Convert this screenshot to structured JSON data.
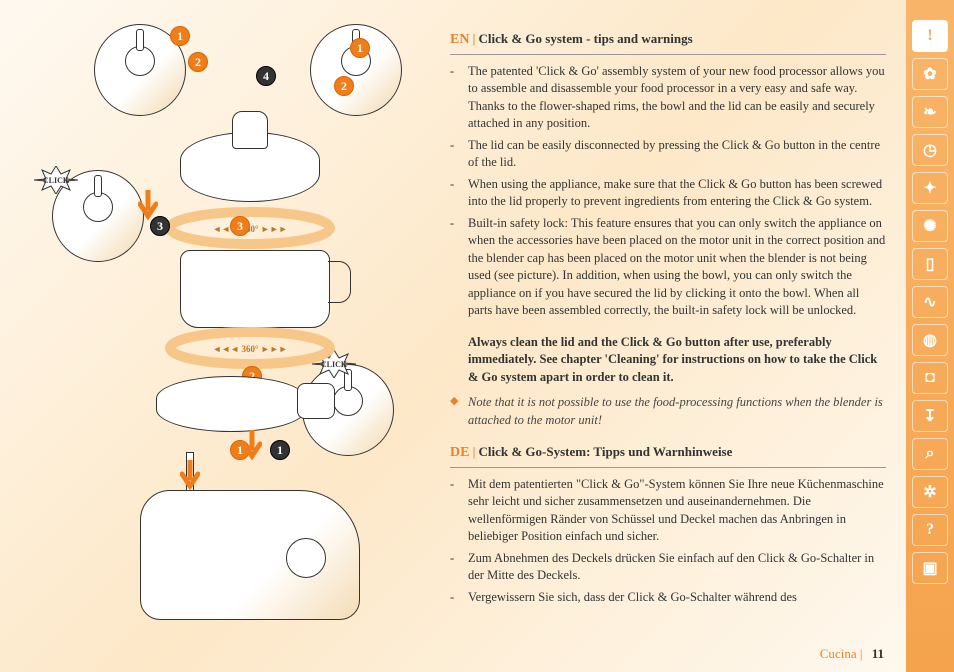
{
  "colors": {
    "accent": "#e8832b",
    "sidebar_bg": "#f5a34d",
    "text": "#333333"
  },
  "diagram": {
    "click_label": "CLICK",
    "ring_label": "360°",
    "steps": [
      "1",
      "2",
      "3",
      "4"
    ],
    "arrow_color": "#f29b3e",
    "ring_color": "#f7c78a"
  },
  "sections": [
    {
      "lang": "EN",
      "title": "Click & Go system - tips and warnings",
      "bullets": [
        "The patented 'Click & Go' assembly system of your new food processor allows you to assemble and disassemble your food processor in a very easy and safe way. Thanks to the flower-shaped rims, the bowl and the lid can be easily and securely attached in any position.",
        "The lid can be easily disconnected by pressing the Click & Go button in the centre of the lid.",
        "When using the appliance, make sure that the Click & Go button has been screwed into the lid properly to prevent ingredients from entering the Click & Go system.",
        "Built-in safety lock: This feature ensures that you can only switch the appliance on when the accessories have been placed on the motor unit in the correct position and the blender cap has been placed on the motor unit when the blender is not being used (see picture). In addition, when using the bowl, you can only switch the appliance on if you have secured the lid by clicking it onto the bowl. When all parts have been assembled correctly, the built-in safety lock will be unlocked."
      ],
      "bold": "Always clean the lid and the Click & Go button after use, preferably immediately. See chapter 'Cleaning' for instructions on how to take the Click & Go system apart in order to clean it.",
      "note": "Note that it is not possible to use the food-processing functions when the blender is attached to the motor unit!"
    },
    {
      "lang": "DE",
      "title": "Click & Go-System: Tipps und Warnhinweise",
      "bullets": [
        "Mit dem patentierten \"Click & Go\"-System können Sie Ihre neue Küchenmaschine sehr leicht und sicher zusammensetzen und auseinandernehmen. Die wellenförmigen Ränder von Schüssel und Deckel machen das Anbringen in beliebiger Position einfach und sicher.",
        "Zum Abnehmen des Deckels drücken Sie einfach auf den Click & Go-Schalter in der Mitte des Deckels.",
        "Vergewissern Sie sich, dass der Click & Go-Schalter während des"
      ]
    }
  ],
  "sidebar": {
    "icons": [
      {
        "name": "warning-icon",
        "glyph": "!",
        "active": true
      },
      {
        "name": "clickgo-icon",
        "glyph": "✿"
      },
      {
        "name": "leaf-icon",
        "glyph": "❧"
      },
      {
        "name": "clock-icon",
        "glyph": "◷"
      },
      {
        "name": "spray-icon",
        "glyph": "✦"
      },
      {
        "name": "citrus-icon",
        "glyph": "✺"
      },
      {
        "name": "cup-icon",
        "glyph": "▯"
      },
      {
        "name": "whisk-icon",
        "glyph": "∿"
      },
      {
        "name": "cake-icon",
        "glyph": "◍"
      },
      {
        "name": "pot-icon",
        "glyph": "◘"
      },
      {
        "name": "tap-icon",
        "glyph": "↧"
      },
      {
        "name": "search-icon",
        "glyph": "⌕"
      },
      {
        "name": "globe-icon",
        "glyph": "✲"
      },
      {
        "name": "help-icon",
        "glyph": "?"
      },
      {
        "name": "device-icon",
        "glyph": "▣"
      }
    ]
  },
  "footer": {
    "label": "Cucina",
    "sep": "|",
    "page": "11"
  }
}
